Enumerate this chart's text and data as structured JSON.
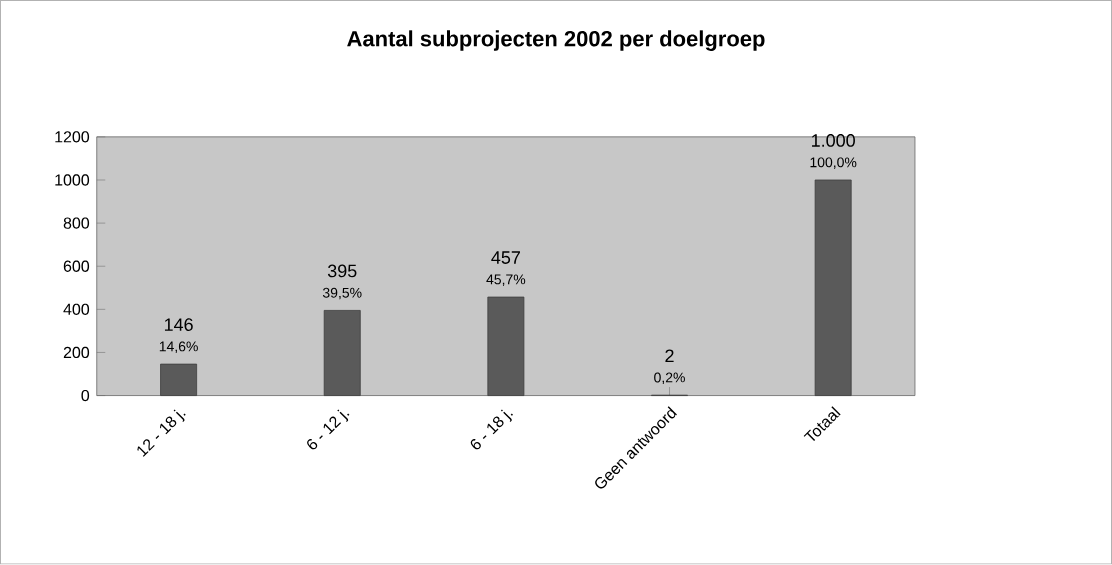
{
  "chart_data": {
    "type": "bar",
    "title": "Aantal subprojecten 2002 per doelgroep",
    "categories": [
      "12 - 18 j.",
      "6 - 12 j.",
      "6 - 18 j.",
      "Geen antwoord",
      "Totaal"
    ],
    "values": [
      146,
      395,
      457,
      2,
      1000
    ],
    "value_labels": [
      "146",
      "395",
      "457",
      "2",
      "1.000"
    ],
    "annotations": [
      {
        "text": "14,6%",
        "x": "12 - 18 j.",
        "y": 146
      },
      {
        "text": "39,5%",
        "x": "6 - 12 j.",
        "y": 395
      },
      {
        "text": "45,7%",
        "x": "6 - 18 j.",
        "y": 457
      },
      {
        "text": "0,2%",
        "x": "Geen antwoord",
        "y": 2
      },
      {
        "text": "100,0%",
        "x": "Totaal",
        "y": 1000
      }
    ],
    "color": "#5a5a5a",
    "ylim": [
      0,
      1200
    ],
    "yticks": [
      0,
      200,
      400,
      600,
      800,
      1000,
      1200
    ],
    "grid": false
  }
}
